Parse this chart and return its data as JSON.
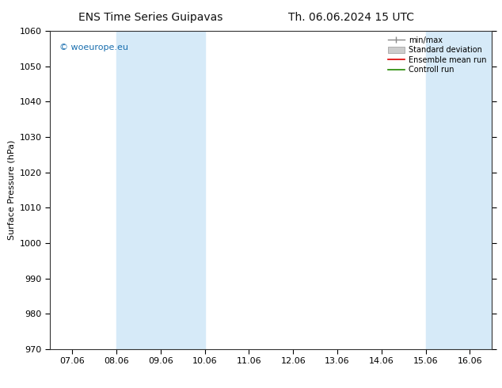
{
  "title_left": "ENS Time Series Guipavas",
  "title_right": "Th. 06.06.2024 15 UTC",
  "ylabel": "Surface Pressure (hPa)",
  "ylim": [
    970,
    1060
  ],
  "yticks": [
    970,
    980,
    990,
    1000,
    1010,
    1020,
    1030,
    1040,
    1050,
    1060
  ],
  "x_labels": [
    "07.06",
    "08.06",
    "09.06",
    "10.06",
    "11.06",
    "12.06",
    "13.06",
    "14.06",
    "15.06",
    "16.06"
  ],
  "x_values": [
    0,
    1,
    2,
    3,
    4,
    5,
    6,
    7,
    8,
    9
  ],
  "x_min": -0.5,
  "x_max": 9.5,
  "shaded_bands": [
    {
      "x_start": 1,
      "x_end": 3,
      "color": "#d6eaf8"
    },
    {
      "x_start": 8,
      "x_end": 9.5,
      "color": "#d6eaf8"
    }
  ],
  "watermark_text": "© woeurope.eu",
  "watermark_color": "#1a6faf",
  "bg_color": "#ffffff",
  "plot_bg_color": "#ffffff",
  "axis_color": "#333333",
  "grid_color": "#cccccc",
  "title_fontsize": 10,
  "label_fontsize": 8,
  "tick_fontsize": 8
}
